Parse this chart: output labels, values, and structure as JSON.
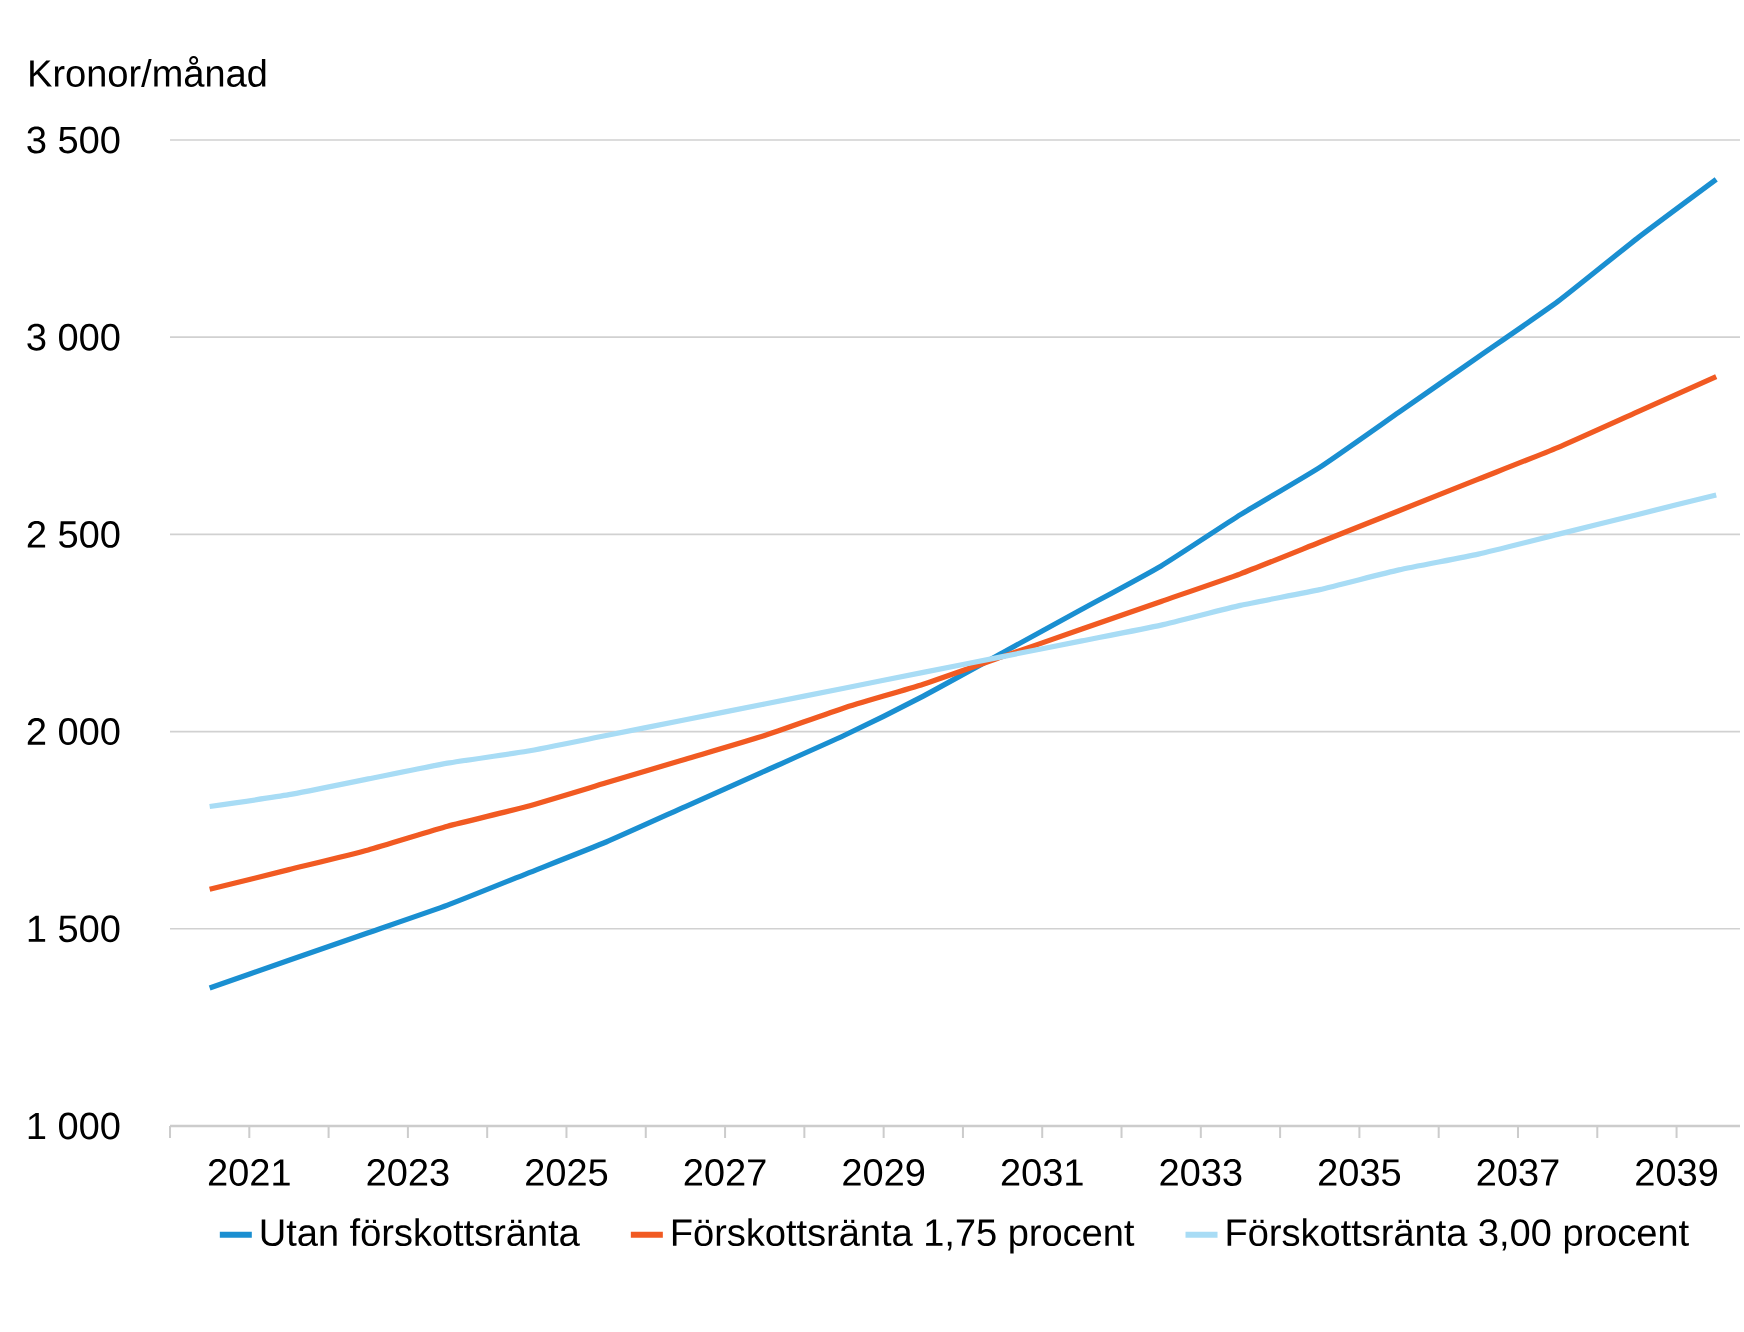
{
  "chart_data": {
    "type": "line",
    "ylabel": "Kronor/månad",
    "x": [
      2020.5,
      2021.5,
      2022.5,
      2023.5,
      2024.5,
      2025.5,
      2026.5,
      2027.5,
      2028.5,
      2029.5,
      2030.5,
      2031.5,
      2032.5,
      2033.5,
      2034.5,
      2035.5,
      2036.5,
      2037.5,
      2038.5,
      2039.5
    ],
    "series": [
      {
        "name": "Utan förskottsränta",
        "color": "#1a8fd1",
        "values": [
          1350,
          1420,
          1490,
          1560,
          1640,
          1720,
          1810,
          1900,
          1990,
          2090,
          2200,
          2310,
          2420,
          2550,
          2670,
          2810,
          2950,
          3090,
          3250,
          3400
        ]
      },
      {
        "name": "Förskottsränta 1,75 procent",
        "color": "#f15a22",
        "values": [
          1600,
          1650,
          1700,
          1760,
          1810,
          1870,
          1930,
          1990,
          2060,
          2120,
          2190,
          2260,
          2330,
          2400,
          2480,
          2560,
          2640,
          2720,
          2810,
          2900
        ]
      },
      {
        "name": "Förskottsränta 3,00 procent",
        "color": "#a8dcf5",
        "values": [
          1810,
          1840,
          1880,
          1920,
          1950,
          1990,
          2030,
          2070,
          2110,
          2150,
          2190,
          2230,
          2270,
          2320,
          2360,
          2410,
          2450,
          2500,
          2550,
          2600
        ]
      }
    ],
    "xlim": [
      2020,
      2039.8
    ],
    "xticks": [
      {
        "value": 2020,
        "label": null
      },
      2021,
      {
        "value": 2022,
        "label": null
      },
      2023,
      {
        "value": 2024,
        "label": null
      },
      2025,
      {
        "value": 2026,
        "label": null
      },
      2027,
      {
        "value": 2028,
        "label": null
      },
      2029,
      {
        "value": 2030,
        "label": null
      },
      2031,
      {
        "value": 2032,
        "label": null
      },
      2033,
      {
        "value": 2034,
        "label": null
      },
      2035,
      {
        "value": 2036,
        "label": null
      },
      2037,
      {
        "value": 2038,
        "label": null
      },
      2039
    ],
    "ylim": [
      1000,
      3500
    ],
    "yticks": [
      {
        "value": 1000,
        "label": "1 000"
      },
      {
        "value": 1500,
        "label": "1 500"
      },
      {
        "value": 2000,
        "label": "2 000"
      },
      {
        "value": 2500,
        "label": "2 500"
      },
      {
        "value": 3000,
        "label": "3 000"
      },
      {
        "value": 3500,
        "label": "3 500"
      }
    ],
    "grid": "y",
    "legend": "bottom",
    "marker": "none",
    "line_style": "solid"
  }
}
